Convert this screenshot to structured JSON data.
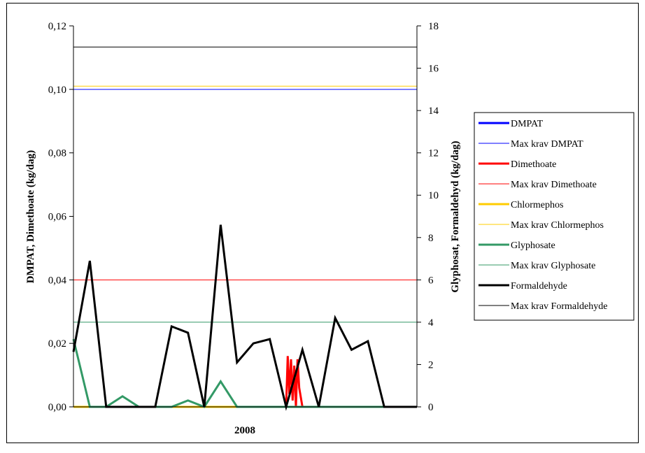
{
  "chart_data": {
    "type": "line",
    "title": "",
    "xlabel": "2008",
    "ylabel_left": "DMPAT, Dimethoate (kg/dag)",
    "ylabel_right": "Glyphosat, Formaldehyd (kg/dag)",
    "ylim_left": [
      0,
      0.12
    ],
    "ylim_right": [
      0,
      18
    ],
    "left_ticks": [
      "0,00",
      "0,02",
      "0,04",
      "0,06",
      "0,08",
      "0,10",
      "0,12"
    ],
    "right_ticks": [
      "0",
      "2",
      "4",
      "6",
      "8",
      "10",
      "12",
      "14",
      "16",
      "18"
    ],
    "grid": false,
    "legend_position": "right",
    "n_points": 22,
    "series": [
      {
        "name": "DMPAT",
        "axis": "left",
        "color": "#0000ff",
        "width": 3,
        "values": [
          0,
          0,
          0,
          0,
          0,
          0,
          0,
          0,
          0,
          0,
          0,
          0,
          0,
          0,
          0,
          0,
          0,
          0,
          0,
          0,
          0,
          0
        ]
      },
      {
        "name": "Max krav DMPAT",
        "axis": "left",
        "color": "#0000ff",
        "width": 1,
        "constant": 0.1
      },
      {
        "name": "Dimethoate",
        "axis": "left",
        "color": "#ff0000",
        "width": 3,
        "x": [
          13.0,
          13.1,
          13.2,
          13.3,
          13.4,
          13.5,
          13.6,
          13.7,
          13.8,
          14.0
        ],
        "values": [
          0,
          0.016,
          0.004,
          0.015,
          0.002,
          0.013,
          0,
          0.015,
          0.006,
          0
        ]
      },
      {
        "name": "Max krav Dimethoate",
        "axis": "left",
        "color": "#ff0000",
        "width": 1,
        "constant": 0.04
      },
      {
        "name": "Chlormephos",
        "axis": "left",
        "color": "#ffcc00",
        "width": 3,
        "values": [
          0,
          0,
          0,
          0,
          0,
          0,
          0,
          0,
          0,
          0,
          0,
          0,
          0,
          0,
          0,
          0,
          0,
          0,
          0,
          0,
          0,
          0
        ]
      },
      {
        "name": "Max krav Chlormephos",
        "axis": "left",
        "color": "#ffcc00",
        "width": 1,
        "constant": 0.101
      },
      {
        "name": "Glyphosate",
        "axis": "right",
        "color": "#339966",
        "width": 3,
        "values": [
          3.2,
          0,
          0,
          0.5,
          0,
          0,
          0,
          0.3,
          0,
          1.2,
          0,
          0,
          0,
          0,
          0,
          0,
          0,
          0,
          0,
          0,
          0,
          0
        ]
      },
      {
        "name": "Max krav Glyphosate",
        "axis": "right",
        "color": "#339966",
        "width": 1,
        "constant": 4
      },
      {
        "name": "Formaldehyde",
        "axis": "right",
        "color": "#000000",
        "width": 3,
        "values": [
          2.6,
          6.9,
          0,
          0,
          0,
          0,
          3.8,
          3.5,
          0,
          8.6,
          2.1,
          3.0,
          3.2,
          0,
          2.7,
          0,
          4.2,
          2.7,
          3.1,
          0,
          0,
          0
        ]
      },
      {
        "name": "Max krav Formaldehyde",
        "axis": "right",
        "color": "#000000",
        "width": 1,
        "constant": 17
      }
    ]
  }
}
